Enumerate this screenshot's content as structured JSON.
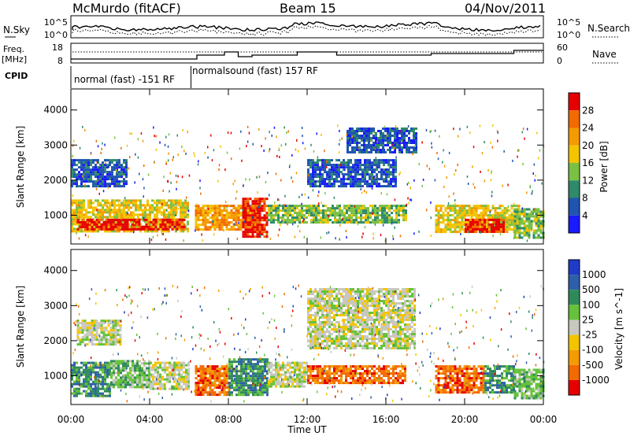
{
  "header": {
    "title": "McMurdo (fitACF)",
    "beam": "Beam 15",
    "date": "04/Nov/2011"
  },
  "noise_panel": {
    "left_label": "N.Sky",
    "right_label": "N.Search",
    "left_ticks": [
      "10^5",
      "10^0"
    ],
    "right_ticks": [
      "10^5",
      "10^0"
    ]
  },
  "freq_panel": {
    "left_label_1": "Freq.",
    "left_label_2": "[MHz]",
    "right_label": "Nave",
    "left_ticks": [
      "18",
      "8"
    ],
    "right_ticks": [
      "60",
      "0"
    ]
  },
  "cpid": {
    "label": "CPID",
    "segments": [
      {
        "text": "normal (fast) -151 RF",
        "start_hour": 0,
        "end_hour": 6.1
      },
      {
        "text": "normalsound (fast) 157 RF",
        "start_hour": 6.1,
        "end_hour": 24
      }
    ]
  },
  "x_axis": {
    "label": "Time UT",
    "ticks": [
      "00:00",
      "04:00",
      "08:00",
      "12:00",
      "16:00",
      "20:00",
      "00:00"
    ],
    "tick_hours": [
      0,
      4,
      8,
      12,
      16,
      20,
      24
    ]
  },
  "power_panel": {
    "ylabel": "Slant Range [km]",
    "yticks": [
      "1000",
      "2000",
      "3000",
      "4000"
    ],
    "colorbar_label": "Power [dB]",
    "colorbar_ticks": [
      "4",
      "8",
      "12",
      "16",
      "20",
      "24",
      "28"
    ],
    "colors": [
      "#1a1aff",
      "#1f55b0",
      "#2f8a6a",
      "#7ac143",
      "#f2c500",
      "#f59a00",
      "#f26a00",
      "#e60000"
    ]
  },
  "velocity_panel": {
    "ylabel": "Slant Range [km]",
    "yticks": [
      "1000",
      "2000",
      "3000",
      "4000"
    ],
    "colorbar_label": "Velocity [m s^-1]",
    "colorbar_ticks": [
      "1000",
      "500",
      "100",
      "25",
      "-25",
      "-100",
      "-500",
      "-1000"
    ],
    "colors": [
      "#1f3cc8",
      "#2e5faa",
      "#2f8a5a",
      "#66c23a",
      "#c8c8c0",
      "#f2c500",
      "#f59a00",
      "#f26a00",
      "#e60000"
    ]
  },
  "chart_data": {
    "type": "heatmap",
    "title": "McMurdo (fitACF)",
    "xlabel": "Time UT",
    "ylabel": "Slant Range [km]",
    "xlim": [
      0,
      24
    ],
    "ylim": [
      180,
      4600
    ],
    "power_regions": [
      {
        "t0": 0.0,
        "t1": 6.0,
        "r0": 550,
        "r1": 1450,
        "level": 4
      },
      {
        "t0": 0.3,
        "t1": 5.8,
        "r0": 620,
        "r1": 900,
        "level": 7
      },
      {
        "t0": 0.0,
        "t1": 2.8,
        "r0": 1850,
        "r1": 2600,
        "level": 1
      },
      {
        "t0": 6.3,
        "t1": 9.5,
        "r0": 600,
        "r1": 1300,
        "level": 5
      },
      {
        "t0": 8.7,
        "t1": 10.0,
        "r0": 400,
        "r1": 1500,
        "level": 7
      },
      {
        "t0": 10.0,
        "t1": 17.0,
        "r0": 800,
        "r1": 1300,
        "level": 3
      },
      {
        "t0": 12.0,
        "t1": 16.5,
        "r0": 1800,
        "r1": 2600,
        "level": 1
      },
      {
        "t0": 14.0,
        "t1": 17.5,
        "r0": 2800,
        "r1": 3500,
        "level": 1
      },
      {
        "t0": 18.5,
        "t1": 22.8,
        "r0": 500,
        "r1": 1300,
        "level": 4
      },
      {
        "t0": 20.0,
        "t1": 22.0,
        "r0": 550,
        "r1": 900,
        "level": 7
      },
      {
        "t0": 22.5,
        "t1": 24.0,
        "r0": 350,
        "r1": 1200,
        "level": 3
      }
    ],
    "velocity_regions": [
      {
        "t0": 0.0,
        "t1": 2.0,
        "r0": 450,
        "r1": 1400,
        "level": 2
      },
      {
        "t0": 2.0,
        "t1": 4.0,
        "r0": 650,
        "r1": 1450,
        "level": 3
      },
      {
        "t0": 4.0,
        "t1": 6.0,
        "r0": 600,
        "r1": 1400,
        "level": 4
      },
      {
        "t0": 0.3,
        "t1": 2.5,
        "r0": 1900,
        "r1": 2600,
        "level": 4
      },
      {
        "t0": 6.3,
        "t1": 8.0,
        "r0": 450,
        "r1": 1300,
        "level": 7
      },
      {
        "t0": 8.0,
        "t1": 10.0,
        "r0": 450,
        "r1": 1500,
        "level": 2
      },
      {
        "t0": 10.0,
        "t1": 12.0,
        "r0": 700,
        "r1": 1400,
        "level": 4
      },
      {
        "t0": 12.0,
        "t1": 17.0,
        "r0": 800,
        "r1": 1300,
        "level": 7
      },
      {
        "t0": 12.0,
        "t1": 17.5,
        "r0": 1800,
        "r1": 3500,
        "level": 4
      },
      {
        "t0": 18.5,
        "t1": 21.0,
        "r0": 500,
        "r1": 1300,
        "level": 7
      },
      {
        "t0": 21.0,
        "t1": 22.5,
        "r0": 500,
        "r1": 1300,
        "level": 2
      },
      {
        "t0": 22.5,
        "t1": 24.0,
        "r0": 350,
        "r1": 1200,
        "level": 3
      }
    ]
  }
}
